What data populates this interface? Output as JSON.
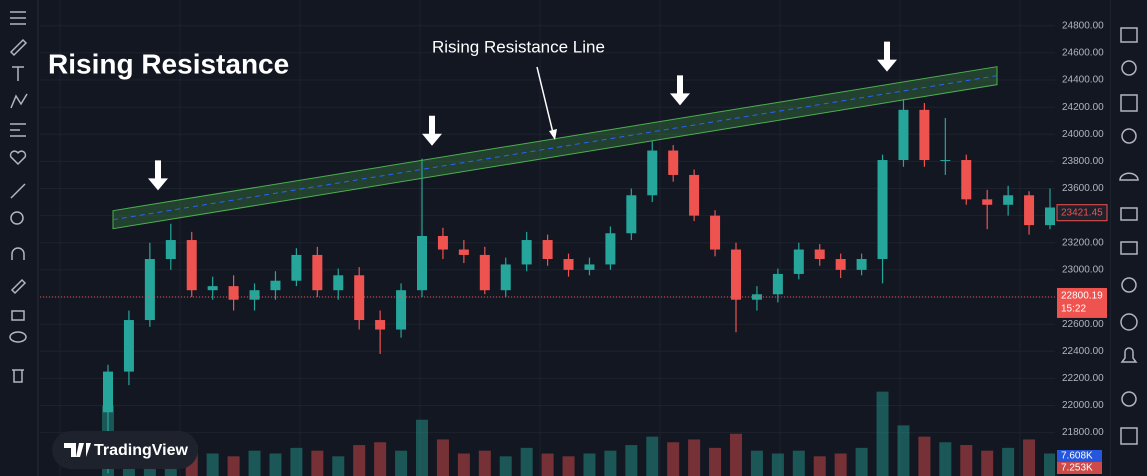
{
  "chart_data": {
    "type": "candlestick",
    "title": "Rising Resistance",
    "annotation": "Rising Resistance Line",
    "watermark": "TradingView",
    "up_color": "#26a69a",
    "down_color": "#ef5350",
    "open": [
      21950,
      22250,
      22630,
      23080,
      23220,
      22850,
      22880,
      22780,
      22850,
      22920,
      23110,
      22850,
      22960,
      22630,
      22560,
      22850,
      23250,
      23150,
      23110,
      22850,
      23040,
      23220,
      23080,
      23000,
      23040,
      23270,
      23550,
      23880,
      23700,
      23400,
      23150,
      22780,
      22820,
      22970,
      23150,
      23080,
      23000,
      23080,
      23810,
      24180,
      23810,
      23810,
      23520,
      23480,
      23550,
      23330
    ],
    "high": [
      22300,
      22700,
      23200,
      23340,
      23280,
      22950,
      22960,
      22900,
      22990,
      23160,
      23170,
      23010,
      23020,
      22700,
      22900,
      23820,
      23310,
      23220,
      23170,
      23090,
      23280,
      23260,
      23120,
      23090,
      23320,
      23600,
      23950,
      23920,
      23740,
      23440,
      23200,
      22880,
      23010,
      23200,
      23190,
      23120,
      23120,
      23850,
      24260,
      24230,
      24120,
      23850,
      23590,
      23620,
      23580,
      23600
    ],
    "low": [
      21500,
      22150,
      22580,
      23000,
      22800,
      22780,
      22700,
      22700,
      22780,
      22880,
      22800,
      22780,
      22560,
      22380,
      22500,
      22800,
      23080,
      23050,
      22820,
      22800,
      22990,
      23030,
      22950,
      22960,
      23000,
      23220,
      23500,
      23650,
      23360,
      23100,
      22540,
      22700,
      22760,
      22930,
      23030,
      22940,
      22960,
      22900,
      23760,
      23760,
      23700,
      23480,
      23300,
      23400,
      23260,
      23300
    ],
    "close": [
      22250,
      22630,
      23080,
      23220,
      22850,
      22880,
      22780,
      22850,
      22920,
      23110,
      22850,
      22960,
      22630,
      22560,
      22850,
      23250,
      23150,
      23110,
      22850,
      23040,
      23220,
      23080,
      23000,
      23040,
      23270,
      23550,
      23880,
      23700,
      23400,
      23150,
      22780,
      22820,
      22970,
      23150,
      23080,
      23000,
      23080,
      23810,
      24180,
      23810,
      23810,
      23520,
      23480,
      23550,
      23330,
      23460
    ],
    "volume": [
      25000,
      12000,
      9000,
      14000,
      11000,
      8000,
      7000,
      9000,
      8000,
      10000,
      9000,
      7000,
      11000,
      12000,
      9000,
      20000,
      13000,
      8000,
      9000,
      7000,
      10000,
      8000,
      7000,
      8000,
      9000,
      11000,
      14000,
      12000,
      13000,
      10000,
      15000,
      9000,
      8000,
      9000,
      7000,
      8000,
      10000,
      30000,
      18000,
      14000,
      12000,
      11000,
      9000,
      10000,
      13000,
      8000
    ],
    "vlim": [
      0,
      32000
    ],
    "volume_labels": [
      {
        "value": 7608,
        "label": "7.608K"
      },
      {
        "value": 7253,
        "label": "7.253K"
      }
    ],
    "resistance_line": [
      23370,
      24432
    ],
    "last_price": 23421.45,
    "marker_price": 22800.19,
    "marker_time": "15:22",
    "ylim": [
      21480,
      24990
    ],
    "yticks": [
      {
        "value": 21800,
        "label": "21800.00"
      },
      {
        "value": 22000,
        "label": "22000.00"
      },
      {
        "value": 22200,
        "label": "22200.00"
      },
      {
        "value": 22400,
        "label": "22400.00"
      },
      {
        "value": 22600,
        "label": "22600.00"
      },
      {
        "value": 22800,
        "label": "22800.00"
      },
      {
        "value": 23000,
        "label": "23000.00"
      },
      {
        "value": 23200,
        "label": "23200.00"
      },
      {
        "value": 23400,
        "label": "23400.00"
      },
      {
        "value": 23600,
        "label": "23600.00"
      },
      {
        "value": 23800,
        "label": "23800.00"
      },
      {
        "value": 24000,
        "label": "24000.00"
      },
      {
        "value": 24200,
        "label": "24200.00"
      },
      {
        "value": 24400,
        "label": "24400.00"
      },
      {
        "value": 24600,
        "label": "24600.00"
      },
      {
        "value": 24800,
        "label": "24800.00"
      }
    ],
    "grid": true
  }
}
